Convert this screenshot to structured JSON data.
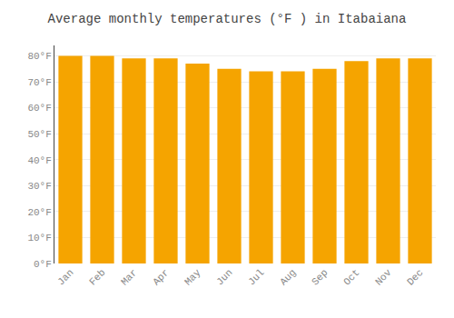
{
  "chart_data": {
    "type": "bar",
    "title": "Average monthly temperatures (°F ) in Itabaiana",
    "categories": [
      "Jan",
      "Feb",
      "Mar",
      "Apr",
      "May",
      "Jun",
      "Jul",
      "Aug",
      "Sep",
      "Oct",
      "Nov",
      "Dec"
    ],
    "values": [
      80,
      80,
      79,
      79,
      77,
      75,
      74,
      74,
      75,
      78,
      79,
      79
    ],
    "color": "#F5A400",
    "ylim": [
      0,
      84
    ],
    "yticks": [
      {
        "value": 0,
        "label": "0°F"
      },
      {
        "value": 10,
        "label": "10°F"
      },
      {
        "value": 20,
        "label": "20°F"
      },
      {
        "value": 30,
        "label": "30°F"
      },
      {
        "value": 40,
        "label": "40°F"
      },
      {
        "value": 50,
        "label": "50°F"
      },
      {
        "value": 60,
        "label": "60°F"
      },
      {
        "value": 70,
        "label": "70°F"
      },
      {
        "value": 80,
        "label": "80°F"
      }
    ],
    "grid": true
  }
}
